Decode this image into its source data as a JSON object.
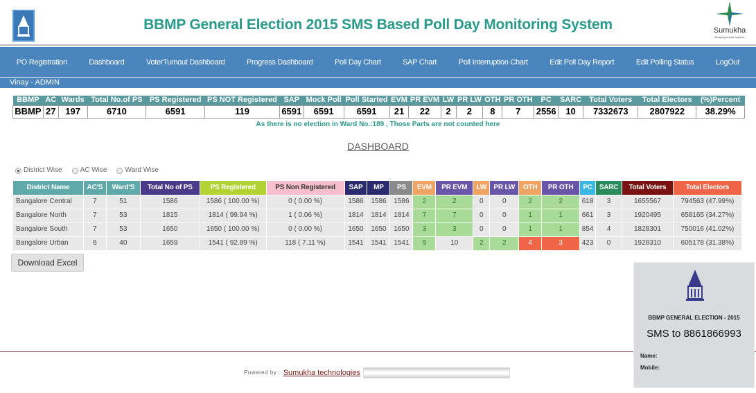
{
  "header": {
    "title": "BBMP General Election 2015 SMS Based Poll Day Monitoring System",
    "brand_name": "Sumukha",
    "brand_tagline": "Bringing people together"
  },
  "nav": [
    "PO Registration",
    "Dashboard",
    "VoterTurnout Dashboard",
    "Progress Dashboard",
    "Poll Day Chart",
    "SAP Chart",
    "Poll Interruption Chart",
    "Edit Poll Day Report",
    "Edit Polling Status",
    "LogOut"
  ],
  "user": "Vinay - ADMIN",
  "summary": {
    "headers": [
      "BBMP",
      "AC",
      "Wards",
      "Total No.of PS",
      "PS Registered",
      "PS NOT Registered",
      "SAP",
      "Mock Poll",
      "Poll Started",
      "EVM",
      "PR EVM",
      "LW",
      "PR LW",
      "OTH",
      "PR OTH",
      "PC",
      "SARC",
      "Total Voters",
      "Total Electors",
      "(%)Percent"
    ],
    "values": [
      "BBMP",
      "27",
      "197",
      "6710",
      "6591",
      "119",
      "6591",
      "6591",
      "6591",
      "21",
      "22",
      "2",
      "2",
      "8",
      "7",
      "2556",
      "10",
      "7332673",
      "2807922",
      "38.29%"
    ]
  },
  "note": "As there is no election in Ward No.:189 , Those Parts are not counted here",
  "dashboard_title": "DASHBOARD",
  "view_options": [
    {
      "label": "District Wise",
      "selected": true
    },
    {
      "label": "AC Wise",
      "selected": false
    },
    {
      "label": "Ward Wise",
      "selected": false
    }
  ],
  "district_table": {
    "headers": [
      "District Name",
      "AC'S",
      "Ward'S",
      "Total No of PS",
      "PS Registered",
      "PS Non Registered",
      "SAP",
      "MP",
      "PS",
      "EVM",
      "PR EVM",
      "LW",
      "PR LW",
      "OTH",
      "PR OTH",
      "PC",
      "SARC",
      "Total Voters",
      "Total Electors"
    ],
    "header_colors": [
      "#5fa9ab",
      "#5fa9ab",
      "#5fa9ab",
      "#4a3a8a",
      "#b3d335",
      "#f8bfcf",
      "#2a2a6e",
      "#2a2a6e",
      "#8a8a8a",
      "#f0a464",
      "#6a56a8",
      "#f0a464",
      "#6a56a8",
      "#f0a464",
      "#6a56a8",
      "#3ab7e2",
      "#2a8a5c",
      "#7a1212",
      "#f06448"
    ],
    "rows": [
      [
        "Bangalore Central",
        "7",
        "51",
        "1586",
        "1586 ( 100.00 %)",
        "0 ( 0.00 %)",
        "1586",
        "1586",
        "1586",
        "2",
        "2",
        "0",
        "0",
        "2",
        "2",
        "618",
        "3",
        "1655567",
        "794563 (47.99%)"
      ],
      [
        "Bangalore North",
        "7",
        "53",
        "1815",
        "1814 ( 99.94 %)",
        "1 ( 0.06 %)",
        "1814",
        "1814",
        "1814",
        "7",
        "7",
        "0",
        "0",
        "1",
        "1",
        "661",
        "3",
        "1920495",
        "658165 (34.27%)"
      ],
      [
        "Bangalore South",
        "7",
        "53",
        "1650",
        "1650 ( 100.00 %)",
        "0 ( 0.00 %)",
        "1650",
        "1650",
        "1650",
        "3",
        "3",
        "0",
        "0",
        "1",
        "1",
        "854",
        "4",
        "1828301",
        "750016 (41.02%)"
      ],
      [
        "Bangalore Urban",
        "6",
        "40",
        "1659",
        "1541 ( 92.89 %)",
        "118 ( 7.11 %)",
        "1541",
        "1541",
        "1541",
        "9",
        "10",
        "2",
        "2",
        "4",
        "3",
        "423",
        "0",
        "1928310",
        "605178 (31.38%)"
      ]
    ],
    "cell_status": [
      [
        "",
        "",
        "",
        "",
        "",
        "",
        "",
        "",
        "",
        "g",
        "g",
        "",
        "",
        "g",
        "g",
        "",
        "",
        "",
        ""
      ],
      [
        "",
        "",
        "",
        "",
        "",
        "",
        "",
        "",
        "",
        "g",
        "g",
        "",
        "",
        "g",
        "g",
        "",
        "",
        "",
        ""
      ],
      [
        "",
        "",
        "",
        "",
        "",
        "",
        "",
        "",
        "",
        "g",
        "g",
        "",
        "",
        "g",
        "g",
        "",
        "",
        "",
        ""
      ],
      [
        "",
        "",
        "",
        "",
        "",
        "",
        "",
        "",
        "",
        "g",
        "",
        "g",
        "g",
        "r",
        "r",
        "",
        "",
        "",
        ""
      ]
    ],
    "status_colors": {
      "g": "#a8db98",
      "r": "#f06448"
    }
  },
  "download_label": "Download Excel",
  "poster": {
    "heading": "BBMP GENERAL ELECTION - 2015",
    "sms": "SMS to 8861866993",
    "name_label": "Name:",
    "mobile_label": "Mobile:"
  },
  "footer": {
    "powered_by": "Powered by :",
    "link": "Sumukha technologies"
  }
}
